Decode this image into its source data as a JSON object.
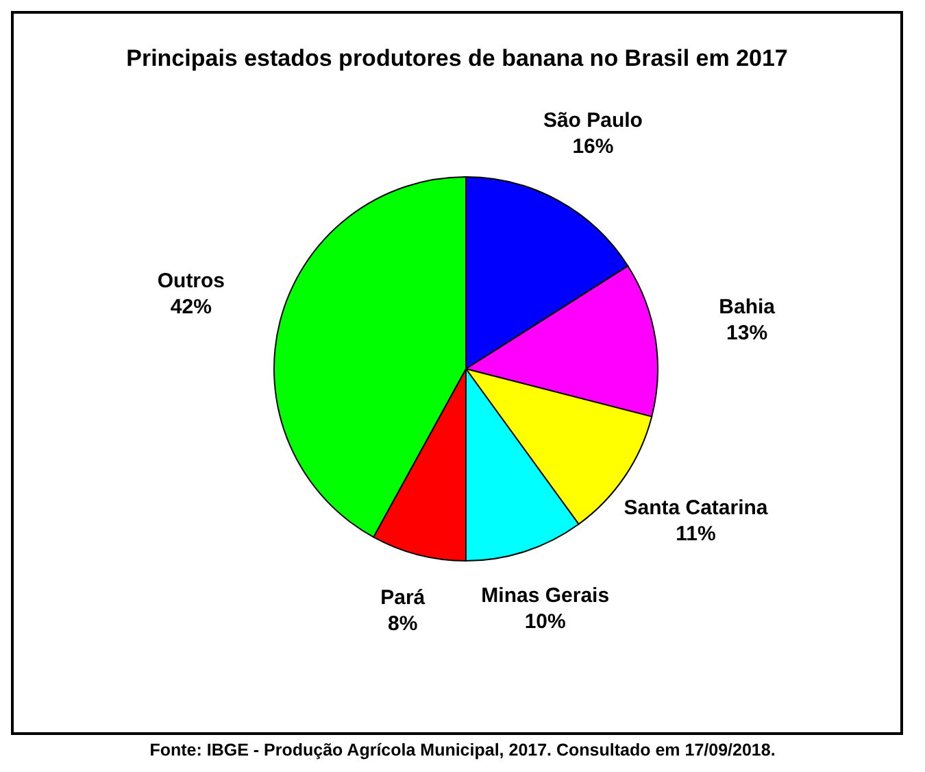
{
  "chart_data": {
    "type": "pie",
    "title": "Principais estados produtores de banana no Brasil em 2017",
    "categories": [
      "São Paulo",
      "Bahia",
      "Santa Catarina",
      "Minas Gerais",
      "Pará",
      "Outros"
    ],
    "values": [
      16,
      13,
      11,
      10,
      8,
      42
    ],
    "value_labels": [
      "16%",
      "13%",
      "11%",
      "10%",
      "8%",
      "42%"
    ],
    "colors": [
      "#0000ff",
      "#ff00ff",
      "#ffff00",
      "#00ffff",
      "#ff0000",
      "#00ff00"
    ],
    "legend": false,
    "annotations": [
      "Fonte: IBGE - Produção Agrícola Municipal, 2017. Consultado em 17/09/2018."
    ]
  }
}
